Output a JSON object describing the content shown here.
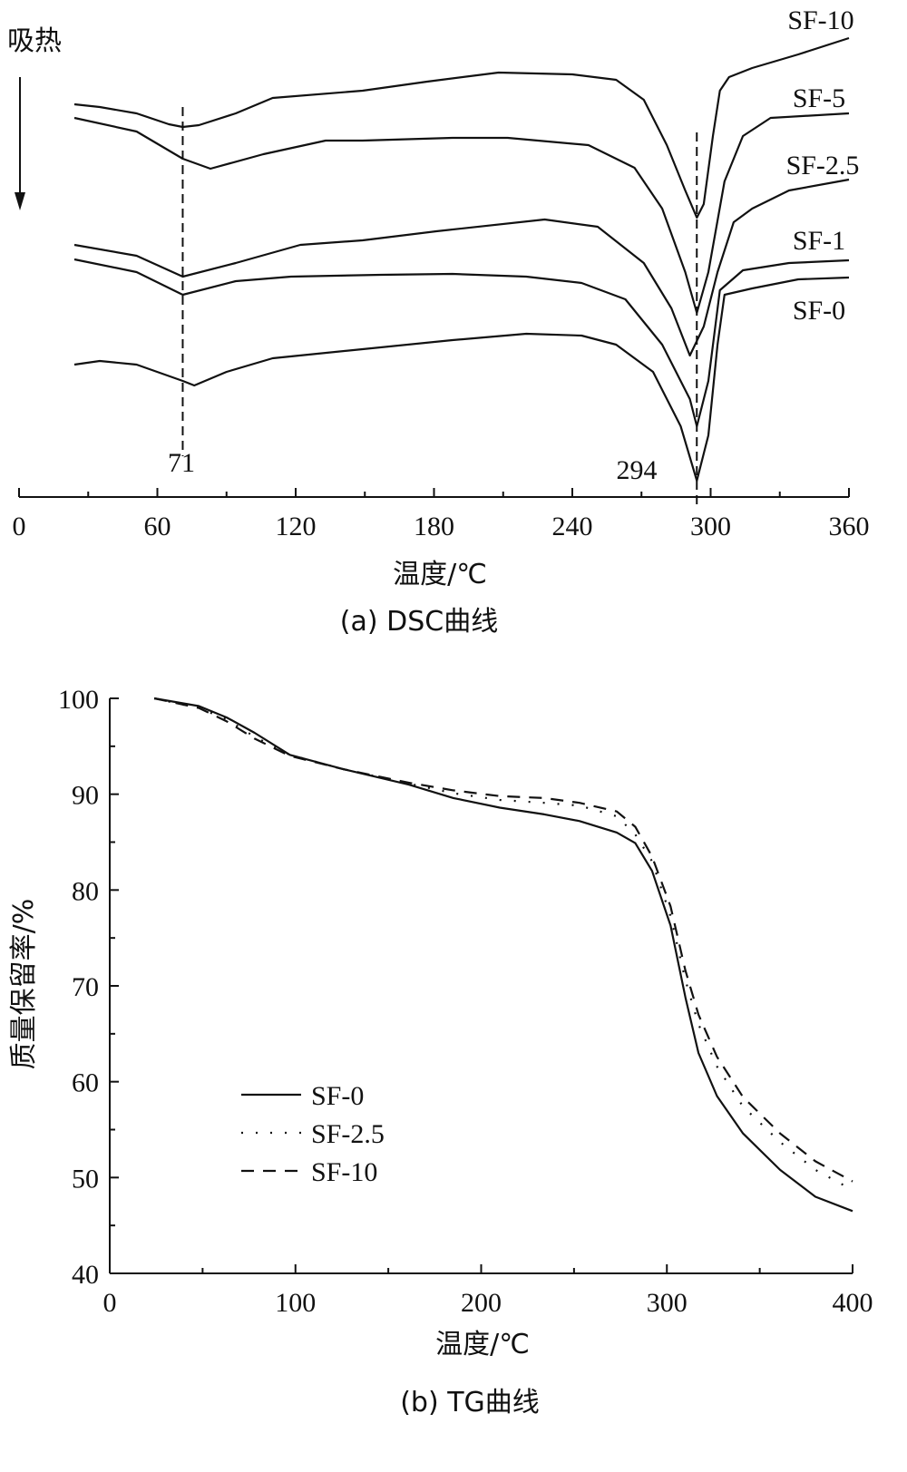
{
  "chart_data": [
    {
      "type": "line",
      "title": "(a) DSC曲线",
      "xlabel": "温度/℃",
      "ylabel": "",
      "y_annotation": "吸热",
      "y_units": "arbitrary (a.u.), curves offset vertically",
      "xlim": [
        0,
        360
      ],
      "ylim": [
        0,
        112
      ],
      "xticks": [
        0,
        60,
        120,
        180,
        240,
        300,
        360
      ],
      "grid": false,
      "annotations": [
        {
          "text": "71",
          "x": 71
        },
        {
          "text": "294",
          "x": 294
        }
      ],
      "series": [
        {
          "name": "SF-10",
          "points": [
            [
              24,
              89
            ],
            [
              35,
              88.4
            ],
            [
              51,
              87
            ],
            [
              65,
              84.6
            ],
            [
              71,
              84
            ],
            [
              78,
              84.4
            ],
            [
              94,
              87
            ],
            [
              110,
              90.4
            ],
            [
              149,
              92
            ],
            [
              177,
              94
            ],
            [
              208,
              96
            ],
            [
              240,
              95.6
            ],
            [
              259,
              94.4
            ],
            [
              271,
              90
            ],
            [
              281,
              80
            ],
            [
              289,
              70
            ],
            [
              294,
              64
            ],
            [
              297,
              67
            ],
            [
              301,
              82
            ],
            [
              304,
              92
            ],
            [
              308,
              95
            ],
            [
              318,
              97
            ],
            [
              338,
              100
            ],
            [
              360,
              103.6
            ]
          ]
        },
        {
          "name": "SF-5",
          "points": [
            [
              24,
              86
            ],
            [
              51,
              83
            ],
            [
              71,
              77
            ],
            [
              83,
              74.8
            ],
            [
              106,
              78
            ],
            [
              133,
              81
            ],
            [
              149,
              81
            ],
            [
              188,
              81.6
            ],
            [
              212,
              81.6
            ],
            [
              247,
              80
            ],
            [
              267,
              75
            ],
            [
              279,
              66
            ],
            [
              289,
              52
            ],
            [
              294,
              43
            ],
            [
              299,
              52
            ],
            [
              306,
              72
            ],
            [
              314,
              82
            ],
            [
              326,
              86
            ],
            [
              360,
              87
            ]
          ]
        },
        {
          "name": "SF-2.5",
          "points": [
            [
              24,
              58
            ],
            [
              51,
              55.6
            ],
            [
              71,
              51
            ],
            [
              94,
              54
            ],
            [
              122,
              58
            ],
            [
              149,
              59
            ],
            [
              181,
              61
            ],
            [
              228,
              63.6
            ],
            [
              251,
              62
            ],
            [
              271,
              54
            ],
            [
              283,
              44
            ],
            [
              291,
              33.6
            ],
            [
              297,
              40
            ],
            [
              303,
              52
            ],
            [
              310,
              63
            ],
            [
              318,
              66
            ],
            [
              334,
              70
            ],
            [
              360,
              72.4
            ]
          ]
        },
        {
          "name": "SF-1",
          "points": [
            [
              24,
              54.8
            ],
            [
              51,
              52
            ],
            [
              71,
              47
            ],
            [
              94,
              50
            ],
            [
              118,
              51
            ],
            [
              157,
              51.4
            ],
            [
              188,
              51.6
            ],
            [
              220,
              51
            ],
            [
              244,
              49.6
            ],
            [
              263,
              46
            ],
            [
              279,
              36
            ],
            [
              291,
              24
            ],
            [
              294,
              18
            ],
            [
              299,
              28
            ],
            [
              304,
              48
            ],
            [
              314,
              52.4
            ],
            [
              334,
              54
            ],
            [
              360,
              54.6
            ]
          ]
        },
        {
          "name": "SF-0",
          "points": [
            [
              24,
              31.6
            ],
            [
              35,
              32.4
            ],
            [
              51,
              31.6
            ],
            [
              71,
              28
            ],
            [
              76,
              27
            ],
            [
              90,
              30
            ],
            [
              110,
              33
            ],
            [
              149,
              35
            ],
            [
              188,
              37
            ],
            [
              220,
              38.4
            ],
            [
              244,
              38
            ],
            [
              259,
              36
            ],
            [
              275,
              30
            ],
            [
              287,
              18
            ],
            [
              294,
              6
            ],
            [
              299,
              16
            ],
            [
              303,
              36
            ],
            [
              306,
              47
            ],
            [
              318,
              48.4
            ],
            [
              338,
              50.4
            ],
            [
              360,
              50.8
            ]
          ]
        }
      ]
    },
    {
      "type": "line",
      "title": "(b) TG曲线",
      "xlabel": "温度/℃",
      "ylabel": "质量保留率/%",
      "xlim": [
        0,
        400
      ],
      "ylim": [
        40,
        100
      ],
      "xticks": [
        0,
        100,
        200,
        300,
        400
      ],
      "yticks": [
        40,
        50,
        60,
        70,
        80,
        90,
        100
      ],
      "grid": false,
      "legend": "bottom-left",
      "series": [
        {
          "name": "SF-0",
          "style": "solid",
          "points": [
            [
              24,
              100
            ],
            [
              48,
              99.2
            ],
            [
              63,
              98
            ],
            [
              78,
              96.4
            ],
            [
              97,
              94.1
            ],
            [
              126,
              92.6
            ],
            [
              161,
              91
            ],
            [
              185,
              89.6
            ],
            [
              210,
              88.6
            ],
            [
              234,
              87.9
            ],
            [
              253,
              87.2
            ],
            [
              273,
              86
            ],
            [
              283,
              84.9
            ],
            [
              292,
              82
            ],
            [
              302,
              76.3
            ],
            [
              310,
              68.8
            ],
            [
              317,
              63
            ],
            [
              327,
              58.5
            ],
            [
              341,
              54.6
            ],
            [
              361,
              50.8
            ],
            [
              380,
              48
            ],
            [
              400,
              46.5
            ]
          ]
        },
        {
          "name": "SF-2.5",
          "style": "dotted",
          "points": [
            [
              24,
              100
            ],
            [
              48,
              99.0
            ],
            [
              63,
              97.8
            ],
            [
              78,
              96.0
            ],
            [
              97,
              94.1
            ],
            [
              126,
              92.6
            ],
            [
              161,
              91.1
            ],
            [
              185,
              90.1
            ],
            [
              210,
              89.4
            ],
            [
              234,
              89.1
            ],
            [
              253,
              88.8
            ],
            [
              273,
              87.7
            ],
            [
              283,
              85.8
            ],
            [
              292,
              83
            ],
            [
              302,
              77.3
            ],
            [
              310,
              70.6
            ],
            [
              317,
              66
            ],
            [
              327,
              61.6
            ],
            [
              341,
              57.4
            ],
            [
              361,
              53.7
            ],
            [
              380,
              50.8
            ],
            [
              400,
              48.7
            ]
          ]
        },
        {
          "name": "SF-10",
          "style": "dashed",
          "points": [
            [
              24,
              100
            ],
            [
              48,
              99.0
            ],
            [
              63,
              97.6
            ],
            [
              78,
              95.8
            ],
            [
              97,
              94.0
            ],
            [
              126,
              92.6
            ],
            [
              161,
              91.2
            ],
            [
              185,
              90.4
            ],
            [
              210,
              89.8
            ],
            [
              234,
              89.6
            ],
            [
              253,
              89.1
            ],
            [
              273,
              88.2
            ],
            [
              283,
              86.6
            ],
            [
              292,
              83.5
            ],
            [
              302,
              78.3
            ],
            [
              310,
              71.6
            ],
            [
              317,
              67
            ],
            [
              327,
              62.6
            ],
            [
              341,
              58.4
            ],
            [
              361,
              54.6
            ],
            [
              380,
              51.7
            ],
            [
              400,
              49.6
            ]
          ]
        }
      ]
    }
  ]
}
